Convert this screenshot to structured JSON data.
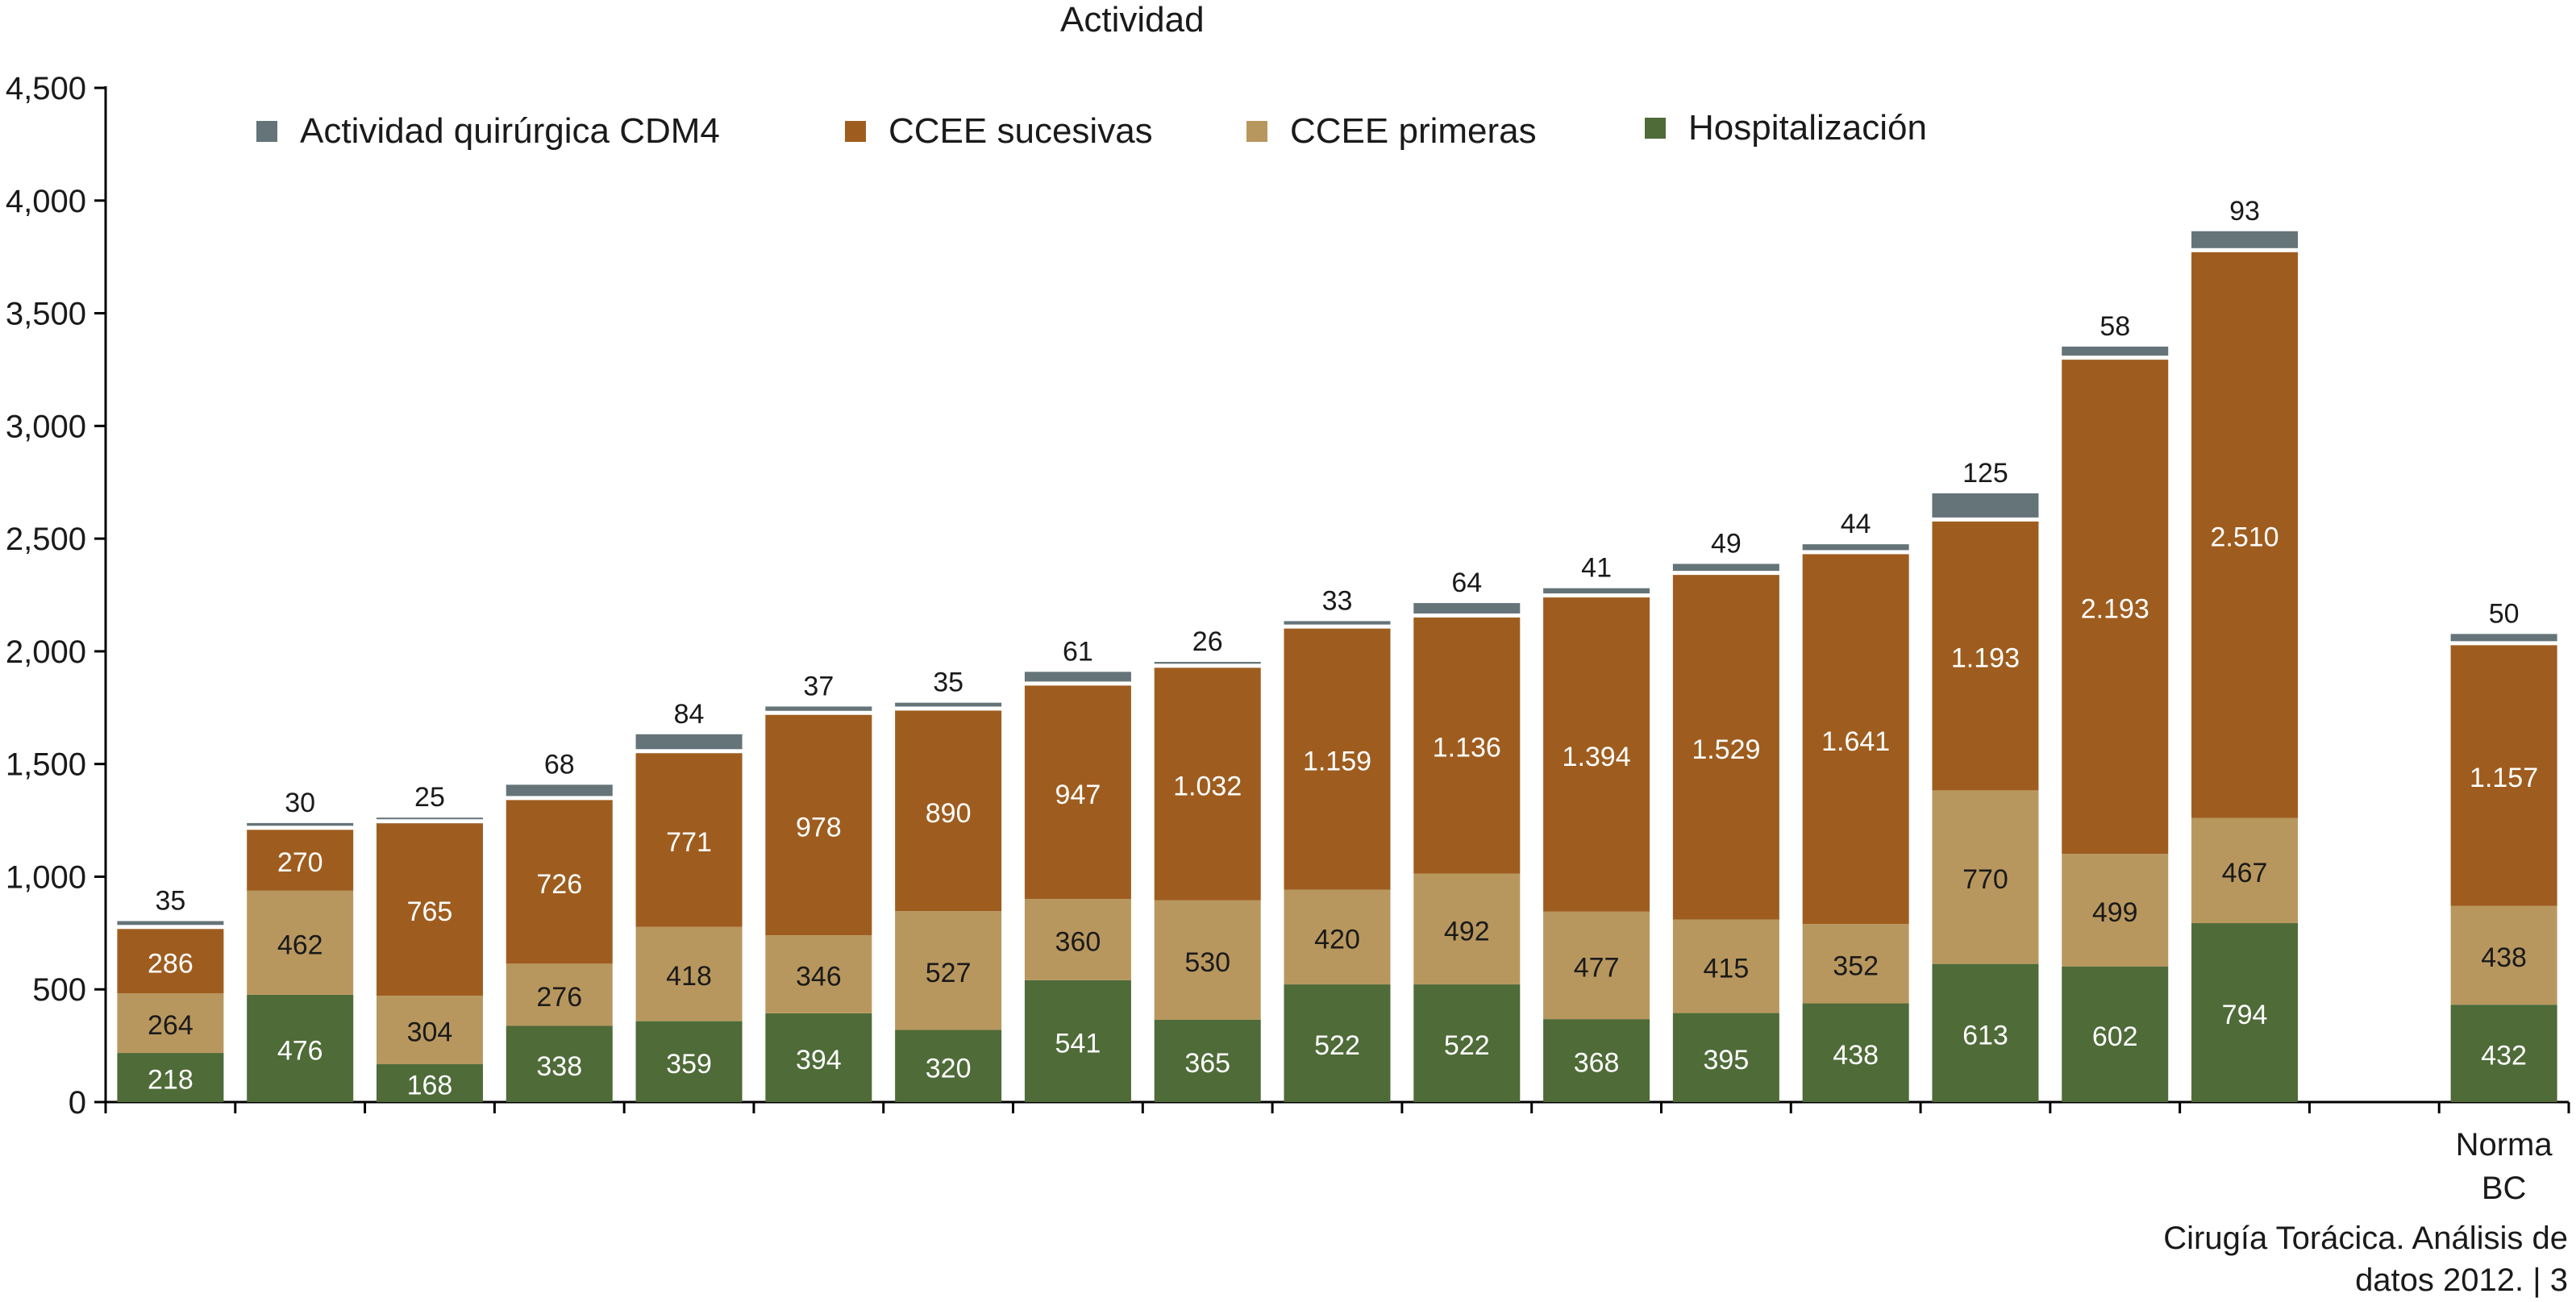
{
  "chart_data": {
    "type": "bar",
    "stacked": true,
    "title": "Actividad",
    "categories": [
      "",
      "",
      "",
      "",
      "",
      "",
      "",
      "",
      "",
      "",
      "",
      "",
      "",
      "",
      "",
      "",
      "",
      "",
      "Norma BC"
    ],
    "series": [
      {
        "name": "Hospitalización",
        "color": "#4e6b38",
        "values": [
          218,
          476,
          168,
          338,
          359,
          394,
          320,
          541,
          365,
          522,
          522,
          368,
          395,
          438,
          613,
          602,
          794,
          null,
          432
        ],
        "labels": [
          "218",
          "476",
          "168",
          "338",
          "359",
          "394",
          "320",
          "541",
          "365",
          "522",
          "522",
          "368",
          "395",
          "438",
          "613",
          "602",
          "794",
          "",
          "432"
        ]
      },
      {
        "name": "CCEE primeras",
        "color": "#b8975e",
        "values": [
          264,
          462,
          304,
          276,
          418,
          346,
          527,
          360,
          530,
          420,
          492,
          477,
          415,
          352,
          770,
          499,
          467,
          null,
          438
        ],
        "labels": [
          "264",
          "462",
          "304",
          "276",
          "418",
          "346",
          "527",
          "360",
          "530",
          "420",
          "492",
          "477",
          "415",
          "352",
          "770",
          "499",
          "467",
          "",
          "438"
        ]
      },
      {
        "name": "CCEE sucesivas",
        "color": "#9e5d1f",
        "values": [
          286,
          270,
          765,
          726,
          771,
          978,
          890,
          947,
          1032,
          1159,
          1136,
          1394,
          1529,
          1641,
          1193,
          2193,
          2510,
          null,
          1157
        ],
        "labels": [
          "286",
          "270",
          "765",
          "726",
          "771",
          "978",
          "890",
          "947",
          "1.032",
          "1.159",
          "1.136",
          "1.394",
          "1.529",
          "1.641",
          "1.193",
          "2.193",
          "2.510",
          "",
          "1.157"
        ]
      },
      {
        "name": "Actividad quirúrgica CDM4",
        "color": "#647478",
        "values": [
          35,
          30,
          25,
          68,
          84,
          37,
          35,
          61,
          26,
          33,
          64,
          41,
          49,
          44,
          125,
          58,
          93,
          null,
          50
        ],
        "labels": [
          "35",
          "30",
          "25",
          "68",
          "84",
          "37",
          "35",
          "61",
          "26",
          "33",
          "64",
          "41",
          "49",
          "44",
          "125",
          "58",
          "93",
          "",
          "50"
        ]
      }
    ],
    "legend_order": [
      "Actividad quirúrgica CDM4",
      "CCEE sucesivas",
      "CCEE primeras",
      "Hospitalización"
    ],
    "legend_position": "top",
    "ylim": [
      0,
      4500
    ],
    "yticks": [
      0,
      500,
      1000,
      1500,
      2000,
      2500,
      3000,
      3500,
      4000,
      4500
    ],
    "ytick_labels": [
      "0",
      "500",
      "1,000",
      "1,500",
      "2,000",
      "2,500",
      "3,000",
      "3,500",
      "4,000",
      "4,500"
    ],
    "xlabel": "",
    "ylabel": "",
    "grid": false
  },
  "footer": {
    "line1": "Cirugía Torácica. Análisis de",
    "line2": "datos 2012. | 3"
  }
}
